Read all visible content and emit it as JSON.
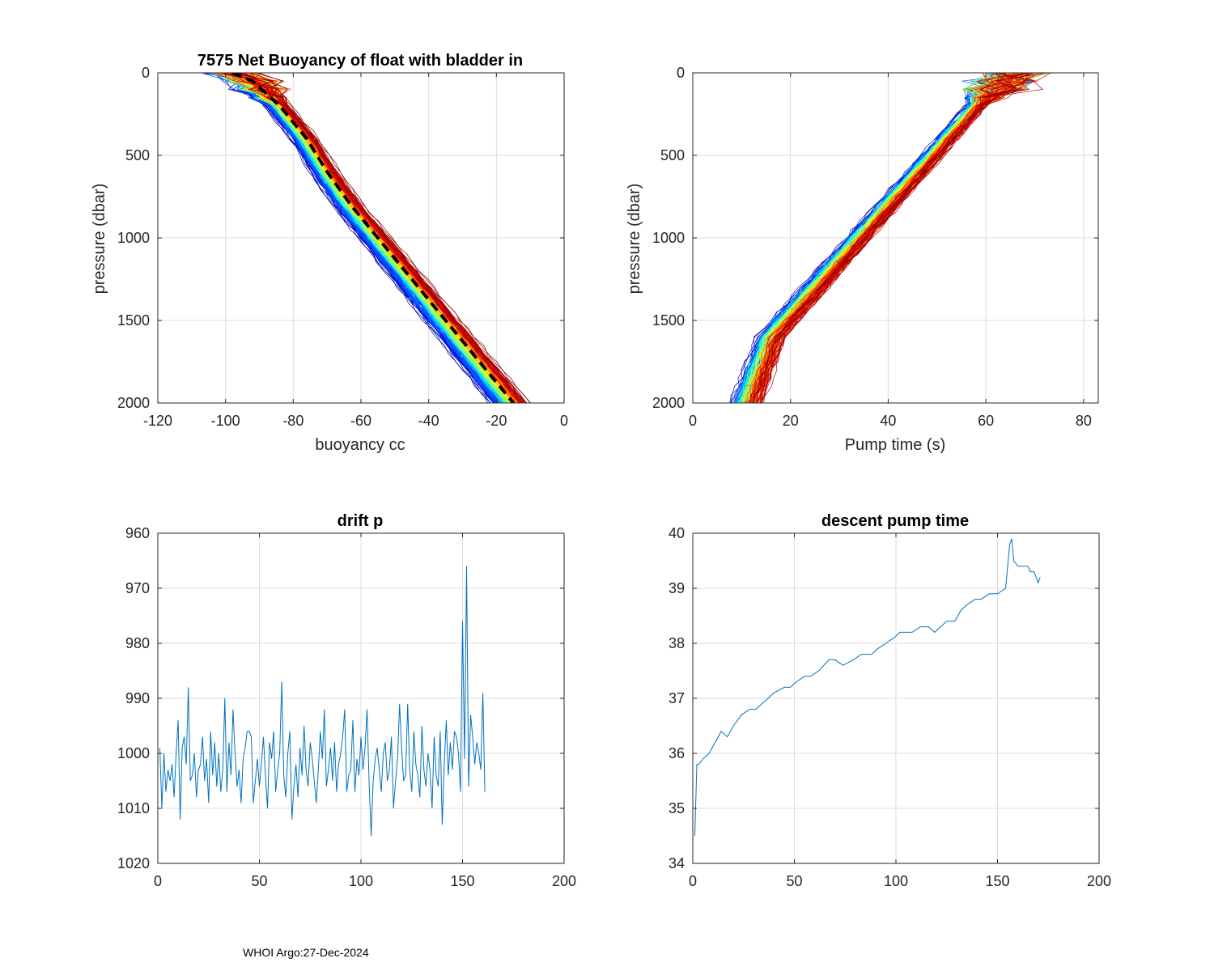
{
  "footer": "WHOI Argo:27-Dec-2024",
  "chart_data": [
    {
      "id": "buoyancy",
      "type": "line",
      "title": "7575 Net Buoyancy of float with bladder in",
      "xlabel": "buoyancy cc",
      "ylabel": "pressure (dbar)",
      "xlim": [
        -120,
        0
      ],
      "ylim": [
        0,
        2000
      ],
      "y_reversed": true,
      "xticks": [
        "-120",
        "-100",
        "-80",
        "-60",
        "-40",
        "-20",
        "0"
      ],
      "yticks": [
        "0",
        "500",
        "1000",
        "1500",
        "2000"
      ],
      "mean_profile": {
        "name": "mean",
        "color": "#000000",
        "x": [
          -98,
          -92,
          -84,
          -76,
          -70,
          -63,
          -55,
          -47,
          -39,
          -31,
          -23,
          -15
        ],
        "y": [
          0,
          50,
          200,
          400,
          600,
          800,
          1000,
          1200,
          1400,
          1600,
          1800,
          2000
        ]
      },
      "profile_family": {
        "count": 171,
        "colormap": "jet",
        "x_offset_range": [
          -8,
          6
        ]
      }
    },
    {
      "id": "pumptime",
      "type": "line",
      "title": "",
      "xlabel": "Pump time (s)",
      "ylabel": "pressure (dbar)",
      "xlim": [
        0,
        83
      ],
      "ylim": [
        0,
        2000
      ],
      "y_reversed": true,
      "xticks": [
        "0",
        "20",
        "40",
        "60",
        "80"
      ],
      "yticks": [
        "0",
        "500",
        "1000",
        "1500",
        "2000"
      ],
      "base_profile": {
        "x": [
          66,
          62,
          58,
          52,
          46,
          40,
          34,
          28,
          22,
          16,
          11
        ],
        "y": [
          0,
          100,
          200,
          400,
          600,
          800,
          1000,
          1200,
          1400,
          1600,
          2000
        ]
      },
      "profile_family": {
        "count": 171,
        "colormap": "jet",
        "x_offset_range": [
          -3,
          3
        ]
      }
    },
    {
      "id": "driftp",
      "type": "line",
      "title": "drift p",
      "xlabel": "",
      "ylabel": "",
      "xlim": [
        0,
        200
      ],
      "ylim": [
        960,
        1020
      ],
      "y_reversed": true,
      "xticks": [
        "0",
        "50",
        "100",
        "150",
        "200"
      ],
      "yticks": [
        "960",
        "970",
        "980",
        "990",
        "1000",
        "1010",
        "1020"
      ],
      "series": [
        {
          "name": "drift p",
          "color": "#0072BD",
          "x_start": 1,
          "values": [
            999,
            1010,
            1000,
            1007,
            1003,
            1005,
            1002,
            1008,
            1000,
            994,
            1012,
            999,
            997,
            1002,
            988,
            1005,
            1004,
            1000,
            1008,
            1003,
            1002,
            997,
            1005,
            1001,
            1009,
            996,
            1004,
            998,
            1006,
            1000,
            1007,
            1003,
            990,
            1007,
            998,
            1004,
            992,
            1000,
            1006,
            1003,
            1009,
            1001,
            999,
            996,
            996,
            997,
            1009,
            1005,
            1001,
            1006,
            1002,
            997,
            1004,
            1010,
            998,
            1001,
            996,
            1007,
            1003,
            1000,
            987,
            1004,
            1008,
            1000,
            996,
            1012,
            1006,
            1002,
            1008,
            999,
            1004,
            995,
            1003,
            1006,
            998,
            1001,
            1005,
            1009,
            1003,
            996,
            1001,
            992,
            1006,
            1003,
            999,
            1005,
            998,
            1007,
            1002,
            1000,
            997,
            992,
            1007,
            1004,
            1003,
            994,
            1007,
            1001,
            1004,
            997,
            1003,
            999,
            992,
            1005,
            1015,
            1005,
            1001,
            999,
            1003,
            1007,
            1000,
            998,
            1005,
            1003,
            997,
            1010,
            1005,
            1001,
            991,
            999,
            1005,
            1004,
            991,
            1003,
            1007,
            996,
            1002,
            1004,
            1008,
            995,
            1003,
            1006,
            1000,
            1003,
            1010,
            997,
            1004,
            1006,
            996,
            1013,
            1002,
            994,
            1004,
            998,
            1003,
            996,
            997,
            1000,
            1007,
            976,
            1001,
            966,
            1006,
            993,
            997,
            1002,
            998,
            1000,
            1003,
            989,
            1007
          ]
        }
      ]
    },
    {
      "id": "pumpdescent",
      "type": "line",
      "title": "descent pump time",
      "xlabel": "",
      "ylabel": "",
      "xlim": [
        0,
        200
      ],
      "ylim": [
        34,
        40
      ],
      "xticks": [
        "0",
        "50",
        "100",
        "150",
        "200"
      ],
      "yticks": [
        "34",
        "35",
        "36",
        "37",
        "38",
        "39",
        "40"
      ],
      "series": [
        {
          "name": "descent pump time",
          "color": "#0072BD",
          "x": [
            1,
            2,
            3,
            5,
            8,
            11,
            14,
            17,
            20,
            24,
            28,
            31,
            34,
            37,
            40,
            45,
            48,
            51,
            55,
            58,
            62,
            67,
            70,
            74,
            79,
            83,
            88,
            91,
            95,
            99,
            102,
            104,
            108,
            112,
            116,
            119,
            122,
            125,
            129,
            132,
            135,
            139,
            142,
            146,
            150,
            154,
            156,
            157,
            158,
            160,
            162,
            163,
            164,
            165,
            166,
            167,
            168,
            169,
            170,
            171
          ],
          "values": [
            34.5,
            35.8,
            35.8,
            35.9,
            36.0,
            36.2,
            36.4,
            36.3,
            36.5,
            36.7,
            36.8,
            36.8,
            36.9,
            37.0,
            37.1,
            37.2,
            37.2,
            37.3,
            37.4,
            37.4,
            37.5,
            37.7,
            37.7,
            37.6,
            37.7,
            37.8,
            37.8,
            37.9,
            38.0,
            38.1,
            38.2,
            38.2,
            38.2,
            38.3,
            38.3,
            38.2,
            38.3,
            38.4,
            38.4,
            38.6,
            38.7,
            38.8,
            38.8,
            38.9,
            38.9,
            39.0,
            39.8,
            39.9,
            39.5,
            39.4,
            39.4,
            39.4,
            39.4,
            39.4,
            39.3,
            39.3,
            39.3,
            39.2,
            39.1,
            39.2
          ]
        }
      ]
    }
  ]
}
